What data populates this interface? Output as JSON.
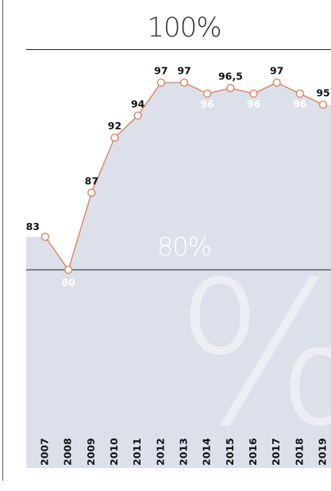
{
  "chart_data": {
    "type": "line",
    "categories": [
      "2007",
      "2008",
      "2009",
      "2010",
      "2011",
      "2012",
      "2013",
      "2014",
      "2015",
      "2016",
      "2017",
      "2018",
      "2019"
    ],
    "series": [
      {
        "color": "#e27b50",
        "fill": "#dce0ea",
        "values": [
          83,
          80,
          87,
          92,
          94,
          97,
          97,
          96,
          96.5,
          96,
          97,
          96,
          95
        ],
        "value_labels": [
          "83",
          "80",
          "87",
          "92",
          "94",
          "97",
          "97",
          "96",
          "96,5",
          "96",
          "97",
          "96",
          "95"
        ]
      }
    ],
    "ylim": [
      62,
      104.5
    ],
    "yticks": [
      {
        "value": 80,
        "label": "80%"
      },
      {
        "value": 100,
        "label": "100%"
      }
    ],
    "watermark": "%"
  }
}
